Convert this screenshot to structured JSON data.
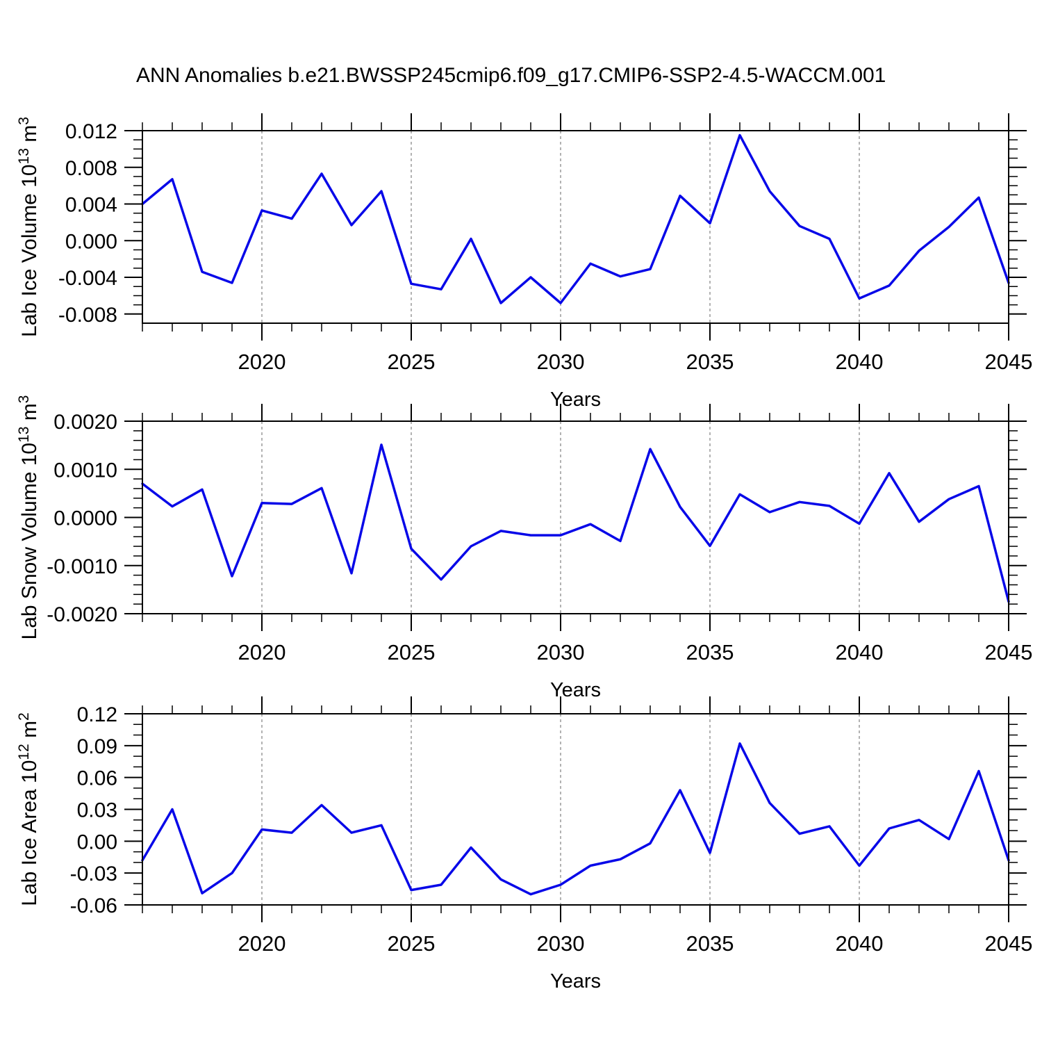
{
  "title": "ANN Anomalies b.e21.BWSSP245cmip6.f09_g17.CMIP6-SSP2-4.5-WACCM.001",
  "colors": {
    "line": "#0808e8",
    "grid": "#888888",
    "axis": "#000000",
    "background": "#ffffff"
  },
  "x": {
    "label": "Years",
    "years": [
      2016,
      2017,
      2018,
      2019,
      2020,
      2021,
      2022,
      2023,
      2024,
      2025,
      2026,
      2027,
      2028,
      2029,
      2030,
      2031,
      2032,
      2033,
      2034,
      2035,
      2036,
      2037,
      2038,
      2039,
      2040,
      2041,
      2042,
      2043,
      2044,
      2045
    ],
    "major_ticks": [
      2020,
      2025,
      2030,
      2035,
      2040,
      2045
    ],
    "major_labels": [
      "2020",
      "2025",
      "2030",
      "2035",
      "2040",
      "2045"
    ],
    "gridline_years": [
      2020,
      2025,
      2030,
      2035,
      2040
    ],
    "minor_step": 1
  },
  "chart_data": [
    {
      "type": "line",
      "name": "lab-ice-volume",
      "title": "",
      "ylabel": "Lab Ice Volume 10^13 m^3",
      "ylabel_parts": [
        [
          "Lab Ice Volume 10",
          0
        ],
        [
          "13",
          1
        ],
        [
          " m",
          0
        ],
        [
          "3",
          1
        ]
      ],
      "xlabel": "Years",
      "ylim": [
        -0.009,
        0.012
      ],
      "ytick_values": [
        0.012,
        0.008,
        0.004,
        0.0,
        -0.004,
        -0.008
      ],
      "ytick_labels": [
        "0.012",
        "0.008",
        "0.004",
        "0.000",
        "-0.004",
        "-0.008"
      ],
      "yminor_step": 0.001,
      "grid": "x-dashed",
      "legend": "none",
      "x": [
        2016,
        2017,
        2018,
        2019,
        2020,
        2021,
        2022,
        2023,
        2024,
        2025,
        2026,
        2027,
        2028,
        2029,
        2030,
        2031,
        2032,
        2033,
        2034,
        2035,
        2036,
        2037,
        2038,
        2039,
        2040,
        2041,
        2042,
        2043,
        2044,
        2045
      ],
      "values": [
        0.004,
        0.0067,
        -0.0034,
        -0.0046,
        0.0033,
        0.0024,
        0.0073,
        0.0017,
        0.0054,
        -0.0047,
        -0.0053,
        0.0002,
        -0.0068,
        -0.004,
        -0.0068,
        -0.0025,
        -0.0039,
        -0.0031,
        0.0049,
        0.0019,
        0.0115,
        0.0054,
        0.0016,
        0.0002,
        -0.0063,
        -0.0049,
        -0.0011,
        0.0015,
        0.0047,
        -0.0046
      ]
    },
    {
      "type": "line",
      "name": "lab-snow-volume",
      "title": "",
      "ylabel": "Lab Snow Volume 10^13 m^3",
      "ylabel_parts": [
        [
          "Lab Snow Volume 10",
          0
        ],
        [
          "13",
          1
        ],
        [
          " m",
          0
        ],
        [
          "3",
          1
        ]
      ],
      "xlabel": "Years",
      "ylim": [
        -0.002,
        0.002
      ],
      "ytick_values": [
        0.002,
        0.001,
        0.0,
        -0.001,
        -0.002
      ],
      "ytick_labels": [
        "0.0020",
        "0.0010",
        "0.0000",
        "-0.0010",
        "-0.0020"
      ],
      "yminor_step": 0.0002,
      "grid": "x-dashed",
      "legend": "none",
      "x": [
        2016,
        2017,
        2018,
        2019,
        2020,
        2021,
        2022,
        2023,
        2024,
        2025,
        2026,
        2027,
        2028,
        2029,
        2030,
        2031,
        2032,
        2033,
        2034,
        2035,
        2036,
        2037,
        2038,
        2039,
        2040,
        2041,
        2042,
        2043,
        2044,
        2045
      ],
      "values": [
        0.0007,
        0.00023,
        0.00058,
        -0.00122,
        0.0003,
        0.00028,
        0.00061,
        -0.00116,
        0.00151,
        -0.00065,
        -0.00129,
        -0.0006,
        -0.00028,
        -0.00037,
        -0.00037,
        -0.00014,
        -0.00049,
        0.00142,
        0.00022,
        -0.00059,
        0.00048,
        0.00011,
        0.00032,
        0.00024,
        -0.00013,
        0.00092,
        -9e-05,
        0.00038,
        0.00065,
        -0.00175
      ]
    },
    {
      "type": "line",
      "name": "lab-ice-area",
      "title": "",
      "ylabel": "Lab Ice Area 10^12 m^2",
      "ylabel_parts": [
        [
          "Lab Ice Area 10",
          0
        ],
        [
          "12",
          1
        ],
        [
          " m",
          0
        ],
        [
          "2",
          1
        ]
      ],
      "xlabel": "Years",
      "ylim": [
        -0.06,
        0.12
      ],
      "ytick_values": [
        0.12,
        0.09,
        0.06,
        0.03,
        0.0,
        -0.03,
        -0.06
      ],
      "ytick_labels": [
        "0.12",
        "0.09",
        "0.06",
        "0.03",
        "0.00",
        "-0.03",
        "-0.06"
      ],
      "yminor_step": 0.01,
      "grid": "x-dashed",
      "legend": "none",
      "x": [
        2016,
        2017,
        2018,
        2019,
        2020,
        2021,
        2022,
        2023,
        2024,
        2025,
        2026,
        2027,
        2028,
        2029,
        2030,
        2031,
        2032,
        2033,
        2034,
        2035,
        2036,
        2037,
        2038,
        2039,
        2040,
        2041,
        2042,
        2043,
        2044,
        2045
      ],
      "values": [
        -0.018,
        0.03,
        -0.049,
        -0.03,
        0.011,
        0.008,
        0.034,
        0.008,
        0.015,
        -0.046,
        -0.041,
        -0.006,
        -0.036,
        -0.05,
        -0.041,
        -0.023,
        -0.017,
        -0.002,
        0.048,
        -0.011,
        0.092,
        0.036,
        0.007,
        0.014,
        -0.023,
        0.012,
        0.02,
        0.002,
        0.066,
        -0.018
      ]
    }
  ]
}
